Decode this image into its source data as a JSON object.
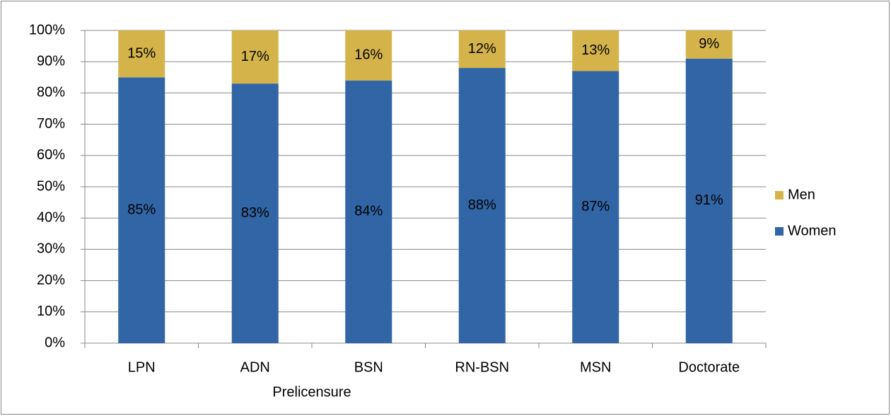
{
  "chart_data": {
    "type": "stacked_bar",
    "categories": [
      "LPN",
      "ADN",
      "BSN",
      "RN-BSN",
      "MSN",
      "Doctorate"
    ],
    "x_group_label": "Prelicensure",
    "series": [
      {
        "name": "Women",
        "color": "#3165a5",
        "values": [
          85,
          83,
          84,
          88,
          87,
          91
        ],
        "value_labels": [
          "85%",
          "83%",
          "84%",
          "88%",
          "87%",
          "91%"
        ]
      },
      {
        "name": "Men",
        "color": "#d4b44a",
        "values": [
          15,
          17,
          16,
          12,
          13,
          9
        ],
        "value_labels": [
          "15%",
          "17%",
          "16%",
          "12%",
          "13%",
          "9%"
        ]
      }
    ],
    "ylim": [
      0,
      100
    ],
    "yticks": [
      {
        "value": 0,
        "label": "0%"
      },
      {
        "value": 10,
        "label": "10%"
      },
      {
        "value": 20,
        "label": "20%"
      },
      {
        "value": 30,
        "label": "30%"
      },
      {
        "value": 40,
        "label": "40%"
      },
      {
        "value": 50,
        "label": "50%"
      },
      {
        "value": 60,
        "label": "60%"
      },
      {
        "value": 70,
        "label": "70%"
      },
      {
        "value": 80,
        "label": "80%"
      },
      {
        "value": 90,
        "label": "90%"
      },
      {
        "value": 100,
        "label": "100%"
      }
    ],
    "grid": true,
    "legend": "right"
  }
}
